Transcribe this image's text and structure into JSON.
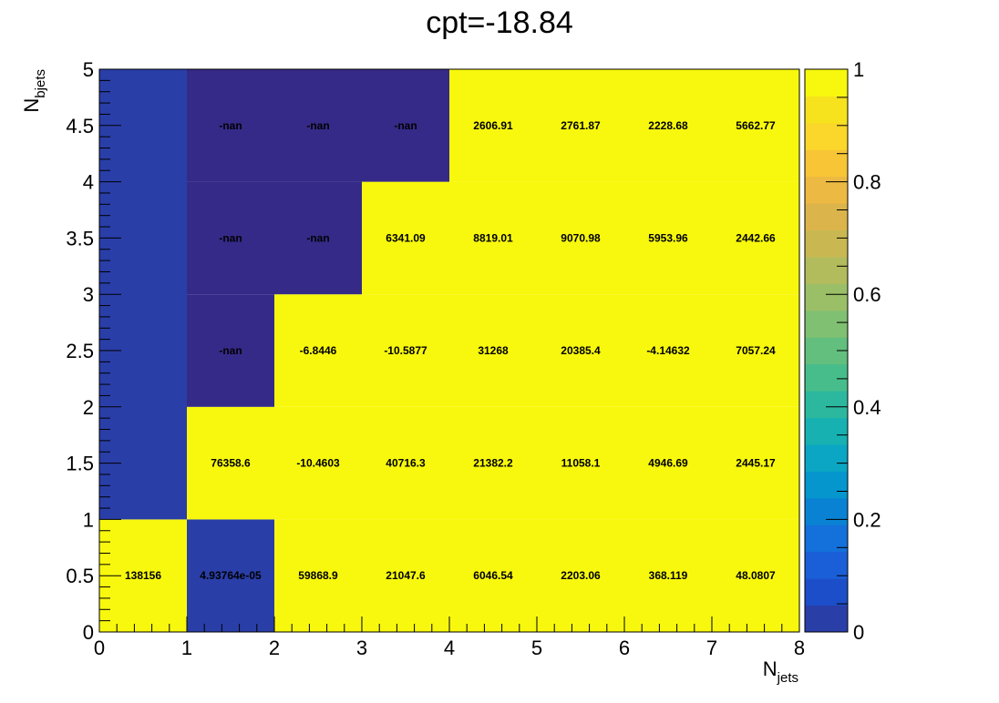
{
  "chart_data": {
    "type": "heatmap",
    "title": "cpt=-18.84",
    "xlabel_main": "N",
    "xlabel_sub": "jets",
    "ylabel_main": "N",
    "ylabel_sub": "bjets",
    "x_edges": [
      0,
      1,
      2,
      3,
      4,
      5,
      6,
      7,
      8
    ],
    "y_edges": [
      0,
      0.5,
      1,
      1.5,
      2,
      2.5,
      3,
      3.5,
      4,
      4.5,
      5
    ],
    "xlim": [
      0,
      8
    ],
    "ylim": [
      0,
      5
    ],
    "x_ticks": [
      "0",
      "1",
      "2",
      "3",
      "4",
      "5",
      "6",
      "7",
      "8"
    ],
    "y_ticks": [
      "0",
      "0.5",
      "1",
      "1.5",
      "2",
      "2.5",
      "3",
      "3.5",
      "4",
      "4.5",
      "5"
    ],
    "colorbar": {
      "range": [
        0,
        1
      ],
      "ticks": [
        "0",
        "0.2",
        "0.4",
        "0.6",
        "0.8",
        "1"
      ],
      "palette": [
        "#2a3ea8",
        "#1c4ec9",
        "#1a5ed8",
        "#1470da",
        "#0a82d4",
        "#0596cd",
        "#0ba6c3",
        "#17b1b2",
        "#2cb89f",
        "#47bd8b",
        "#62bf7e",
        "#80c072",
        "#9bbf67",
        "#b2bc5c",
        "#c9b852",
        "#dbb44b",
        "#ecb942",
        "#f8c536",
        "#fbd72b",
        "#f6e31d",
        "#f8f80e"
      ]
    },
    "cells": [
      {
        "x": 0,
        "y": 0,
        "w": 1,
        "h": 1,
        "value": 1,
        "label": "138156"
      },
      {
        "x": 1,
        "y": 0,
        "w": 1,
        "h": 1,
        "value": 0,
        "label": "4.93764e-05"
      },
      {
        "x": 2,
        "y": 0,
        "w": 1,
        "h": 1,
        "value": 1,
        "label": "59868.9"
      },
      {
        "x": 3,
        "y": 0,
        "w": 1,
        "h": 1,
        "value": 1,
        "label": "21047.6"
      },
      {
        "x": 4,
        "y": 0,
        "w": 1,
        "h": 1,
        "value": 1,
        "label": "6046.54"
      },
      {
        "x": 5,
        "y": 0,
        "w": 1,
        "h": 1,
        "value": 1,
        "label": "2203.06"
      },
      {
        "x": 6,
        "y": 0,
        "w": 1,
        "h": 1,
        "value": 1,
        "label": "368.119"
      },
      {
        "x": 7,
        "y": 0,
        "w": 1,
        "h": 1,
        "value": 1,
        "label": "48.0807"
      },
      {
        "x": 0,
        "y": 1,
        "w": 1,
        "h": 4,
        "value": 0,
        "label": ""
      },
      {
        "x": 1,
        "y": 1,
        "w": 1,
        "h": 1,
        "value": 1,
        "label": "76358.6"
      },
      {
        "x": 2,
        "y": 1,
        "w": 1,
        "h": 1,
        "value": 1,
        "label": "-10.4603"
      },
      {
        "x": 3,
        "y": 1,
        "w": 1,
        "h": 1,
        "value": 1,
        "label": "40716.3"
      },
      {
        "x": 4,
        "y": 1,
        "w": 1,
        "h": 1,
        "value": 1,
        "label": "21382.2"
      },
      {
        "x": 5,
        "y": 1,
        "w": 1,
        "h": 1,
        "value": 1,
        "label": "11058.1"
      },
      {
        "x": 6,
        "y": 1,
        "w": 1,
        "h": 1,
        "value": 1,
        "label": "4946.69"
      },
      {
        "x": 7,
        "y": 1,
        "w": 1,
        "h": 1,
        "value": 1,
        "label": "2445.17"
      },
      {
        "x": 1,
        "y": 2,
        "w": 1,
        "h": 1,
        "value": null,
        "label": "-nan"
      },
      {
        "x": 2,
        "y": 2,
        "w": 1,
        "h": 1,
        "value": 1,
        "label": "-6.8446"
      },
      {
        "x": 3,
        "y": 2,
        "w": 1,
        "h": 1,
        "value": 1,
        "label": "-10.5877"
      },
      {
        "x": 4,
        "y": 2,
        "w": 1,
        "h": 1,
        "value": 1,
        "label": "31268"
      },
      {
        "x": 5,
        "y": 2,
        "w": 1,
        "h": 1,
        "value": 1,
        "label": "20385.4"
      },
      {
        "x": 6,
        "y": 2,
        "w": 1,
        "h": 1,
        "value": 1,
        "label": "-4.14632"
      },
      {
        "x": 7,
        "y": 2,
        "w": 1,
        "h": 1,
        "value": 1,
        "label": "7057.24"
      },
      {
        "x": 1,
        "y": 3,
        "w": 1,
        "h": 1,
        "value": null,
        "label": "-nan"
      },
      {
        "x": 2,
        "y": 3,
        "w": 1,
        "h": 1,
        "value": null,
        "label": "-nan"
      },
      {
        "x": 3,
        "y": 3,
        "w": 1,
        "h": 1,
        "value": 1,
        "label": "6341.09"
      },
      {
        "x": 4,
        "y": 3,
        "w": 1,
        "h": 1,
        "value": 1,
        "label": "8819.01"
      },
      {
        "x": 5,
        "y": 3,
        "w": 1,
        "h": 1,
        "value": 1,
        "label": "9070.98"
      },
      {
        "x": 6,
        "y": 3,
        "w": 1,
        "h": 1,
        "value": 1,
        "label": "5953.96"
      },
      {
        "x": 7,
        "y": 3,
        "w": 1,
        "h": 1,
        "value": 1,
        "label": "2442.66"
      },
      {
        "x": 1,
        "y": 4,
        "w": 1,
        "h": 1,
        "value": null,
        "label": "-nan"
      },
      {
        "x": 2,
        "y": 4,
        "w": 1,
        "h": 1,
        "value": null,
        "label": "-nan"
      },
      {
        "x": 3,
        "y": 4,
        "w": 1,
        "h": 1,
        "value": null,
        "label": "-nan"
      },
      {
        "x": 4,
        "y": 4,
        "w": 1,
        "h": 1,
        "value": 1,
        "label": "2606.91"
      },
      {
        "x": 5,
        "y": 4,
        "w": 1,
        "h": 1,
        "value": 1,
        "label": "2761.87"
      },
      {
        "x": 6,
        "y": 4,
        "w": 1,
        "h": 1,
        "value": 1,
        "label": "2228.68"
      },
      {
        "x": 7,
        "y": 4,
        "w": 1,
        "h": 1,
        "value": 1,
        "label": "5662.77"
      }
    ],
    "colors": {
      "high": "#f8f80e",
      "low": "#2a3ea8",
      "nan": "#352a87"
    }
  }
}
